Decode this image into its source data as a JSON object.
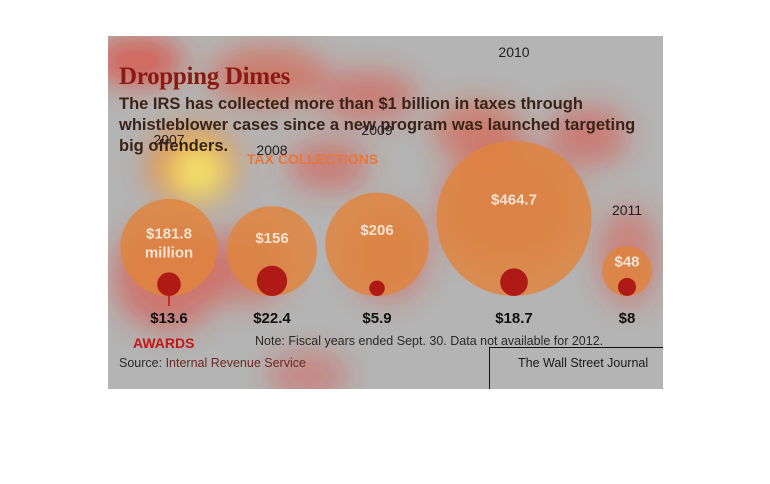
{
  "title": "Dropping Dimes",
  "subtitle": "The IRS has collected more than $1 billion in taxes through whistleblower cases since a new program was launched targeting big offenders.",
  "tax_collections_label": "TAX COLLECTIONS",
  "awards_label": "AWARDS",
  "note": "Note: Fiscal years ended Sept. 30. Data not available for 2012.",
  "source_prefix": "Source: ",
  "source_org": "Internal Revenue Service",
  "credit": "The Wall Street Journal",
  "colors": {
    "collections": "#e0843c",
    "awards": "#b01a16",
    "title": "#8b1a14",
    "background": "#b4b4b4"
  },
  "chart_data": {
    "type": "bubble",
    "title": "Dropping Dimes",
    "categories": [
      "2007",
      "2008",
      "2009",
      "2010",
      "2011"
    ],
    "series": [
      {
        "name": "TAX COLLECTIONS",
        "values": [
          181.8,
          156,
          206,
          464.7,
          48
        ],
        "labels": [
          "$181.8 million",
          "$156",
          "$206",
          "$464.7",
          "$48"
        ]
      },
      {
        "name": "AWARDS",
        "values": [
          13.6,
          22.4,
          5.9,
          18.7,
          8
        ],
        "labels": [
          "$13.6",
          "$22.4",
          "$5.9",
          "$18.7",
          "$8"
        ]
      }
    ],
    "heatmap_overlay": true
  }
}
